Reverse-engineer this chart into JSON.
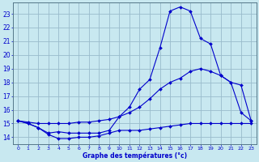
{
  "title": "Graphe des températures (°c)",
  "bg_color": "#c8e8f0",
  "line_color": "#0000cc",
  "grid_color": "#99bbcc",
  "xlim": [
    -0.5,
    23.5
  ],
  "ylim": [
    13.5,
    23.8
  ],
  "xticks": [
    0,
    1,
    2,
    3,
    4,
    5,
    6,
    7,
    8,
    9,
    10,
    11,
    12,
    13,
    14,
    15,
    16,
    17,
    18,
    19,
    20,
    21,
    22,
    23
  ],
  "yticks": [
    14,
    15,
    16,
    17,
    18,
    19,
    20,
    21,
    22,
    23
  ],
  "line1_y": [
    15.2,
    15.0,
    14.7,
    14.2,
    13.9,
    13.9,
    14.0,
    14.0,
    14.1,
    14.3,
    14.5,
    14.5,
    14.5,
    14.6,
    14.7,
    14.8,
    14.9,
    15.0,
    15.0,
    15.0,
    15.0,
    15.0,
    15.0,
    15.0
  ],
  "line2_y": [
    15.2,
    15.1,
    15.0,
    15.0,
    15.0,
    15.0,
    15.1,
    15.1,
    15.2,
    15.3,
    15.5,
    15.8,
    16.2,
    16.8,
    17.5,
    18.0,
    18.3,
    18.8,
    19.0,
    18.8,
    18.5,
    18.0,
    17.8,
    15.2
  ],
  "line3_y": [
    15.2,
    15.0,
    14.7,
    14.3,
    14.4,
    14.3,
    14.3,
    14.3,
    14.3,
    14.5,
    15.5,
    16.2,
    17.5,
    18.2,
    20.5,
    23.2,
    23.5,
    23.2,
    21.2,
    20.8,
    18.5,
    18.0,
    15.8,
    15.2
  ]
}
